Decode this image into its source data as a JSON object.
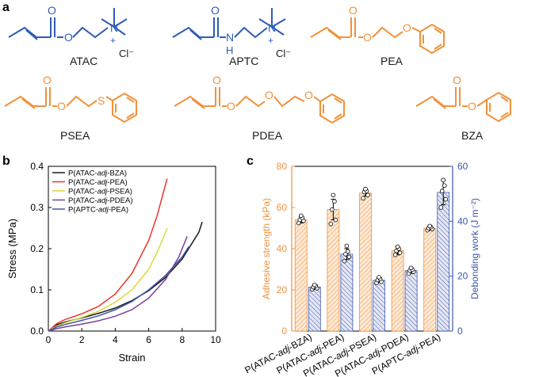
{
  "panel_labels": {
    "a": "a",
    "b": "b",
    "c": "c"
  },
  "molecules": {
    "atac": {
      "name": "ATAC",
      "atoms": [
        "O",
        "O",
        "N",
        "+",
        "Cl⁻"
      ]
    },
    "aptc": {
      "name": "APTC",
      "atoms": [
        "O",
        "N",
        "H",
        "N",
        "+",
        "Cl⁻"
      ]
    },
    "pea": {
      "name": "PEA",
      "atoms": [
        "O",
        "O",
        "O"
      ]
    },
    "psea": {
      "name": "PSEA",
      "atoms": [
        "O",
        "O",
        "S"
      ]
    },
    "pdea": {
      "name": "PDEA",
      "atoms": [
        "O",
        "O",
        "O",
        "O"
      ]
    },
    "bza": {
      "name": "BZA",
      "atoms": [
        "O",
        "O"
      ]
    }
  },
  "colors": {
    "blue": "#2f5bb7",
    "orange": "#f2913a",
    "black": "#1a1a1a",
    "red": "#e8342c",
    "yellow": "#d9d93a",
    "purple": "#7b3fa0",
    "navy": "#3e56a8"
  },
  "chart_data": [
    {
      "type": "line",
      "panel": "b",
      "xlabel": "Strain",
      "ylabel": "Stress (MPa)",
      "xlim": [
        0,
        10
      ],
      "ylim": [
        0,
        0.4
      ],
      "xticks": [
        0,
        2,
        4,
        6,
        8,
        10
      ],
      "yticks": [
        0.0,
        0.1,
        0.2,
        0.3,
        0.4
      ],
      "legend": "top-left",
      "series": [
        {
          "name": "P(ATAC-adj-BZA)",
          "label_parts": [
            "P(ATAC-",
            "adj",
            "-BZA)"
          ],
          "color": "#1a1a1a",
          "x": [
            0,
            0.5,
            1,
            2,
            3,
            4,
            5,
            6,
            7,
            8,
            9,
            9.2
          ],
          "y": [
            0,
            0.015,
            0.022,
            0.032,
            0.043,
            0.056,
            0.074,
            0.098,
            0.13,
            0.175,
            0.24,
            0.265
          ]
        },
        {
          "name": "P(ATAC-adj-PEA)",
          "label_parts": [
            "P(ATAC-",
            "adj",
            "-PEA)"
          ],
          "color": "#e8342c",
          "x": [
            0,
            0.5,
            1,
            2,
            3,
            4,
            5,
            6,
            6.5,
            7.1
          ],
          "y": [
            0,
            0.018,
            0.028,
            0.042,
            0.06,
            0.09,
            0.14,
            0.22,
            0.28,
            0.37
          ]
        },
        {
          "name": "P(ATAC-adj-PSEA)",
          "label_parts": [
            "P(ATAC-",
            "adj",
            "-PSEA)"
          ],
          "color": "#d9d93a",
          "x": [
            0,
            0.5,
            1,
            2,
            3,
            4,
            5,
            6,
            6.6,
            7.1
          ],
          "y": [
            0,
            0.012,
            0.02,
            0.033,
            0.048,
            0.07,
            0.1,
            0.15,
            0.2,
            0.25
          ]
        },
        {
          "name": "P(ATAC-adj-PDEA)",
          "label_parts": [
            "P(ATAC-",
            "adj",
            "-PDEA)"
          ],
          "color": "#7b3fa0",
          "x": [
            0,
            0.5,
            1,
            2,
            3,
            4,
            5,
            6,
            7,
            7.8,
            8.3
          ],
          "y": [
            0,
            0.006,
            0.01,
            0.017,
            0.025,
            0.036,
            0.052,
            0.08,
            0.125,
            0.18,
            0.23
          ]
        },
        {
          "name": "P(APTC-adj-PEA)",
          "label_parts": [
            "P(APTC-",
            "adj",
            "-PEA)"
          ],
          "color": "#3e56a8",
          "x": [
            0,
            0.5,
            1,
            2,
            3,
            4,
            5,
            6,
            7,
            8,
            8.4
          ],
          "y": [
            0,
            0.01,
            0.016,
            0.026,
            0.037,
            0.052,
            0.072,
            0.1,
            0.135,
            0.18,
            0.205
          ]
        }
      ]
    },
    {
      "type": "bar",
      "panel": "c",
      "categories": [
        "P(ATAC-adj-BZA)",
        "P(ATAC-adj-PEA)",
        "P(ATAC-adj-PSEA)",
        "P(ATAC-adj-PDEA)",
        "P(APTC-adj-PEA)"
      ],
      "category_parts": [
        [
          "P(ATAC-",
          "adj",
          "-BZA)"
        ],
        [
          "P(ATAC-",
          "adj",
          "-PEA)"
        ],
        [
          "P(ATAC-",
          "adj",
          "-PSEA)"
        ],
        [
          "P(ATAC-",
          "adj",
          "-PDEA)"
        ],
        [
          "P(APTC-",
          "adj",
          "-PEA)"
        ]
      ],
      "ylabel_left": "Adhesive strength (kPa)",
      "ylabel_right": "Debonding work (J m⁻²)",
      "ylim_left": [
        0,
        80
      ],
      "ylim_right": [
        0,
        60
      ],
      "yticks_left": [
        0,
        20,
        40,
        60,
        80
      ],
      "yticks_right": [
        0,
        20,
        40,
        60
      ],
      "series": [
        {
          "name": "Adhesive strength",
          "axis": "left",
          "color": "#f2913a",
          "values": [
            54,
            59,
            67,
            39,
            50
          ],
          "errors": [
            1.5,
            5,
            1.5,
            2,
            1
          ],
          "points": [
            [
              52.5,
              53.5,
              54,
              55,
              56
            ],
            [
              52,
              54,
              59,
              63,
              66
            ],
            [
              64.5,
              66,
              67.5,
              68,
              69
            ],
            [
              37,
              38,
              39,
              40,
              41
            ],
            [
              49,
              49.5,
              50,
              50.5,
              51
            ]
          ]
        },
        {
          "name": "Debonding work",
          "axis": "right",
          "color": "#3e56a8",
          "values": [
            16,
            28,
            18.5,
            22,
            50.5
          ],
          "errors": [
            0.8,
            2,
            0.8,
            1,
            4.5
          ],
          "points": [
            [
              15.2,
              15.6,
              16,
              16.4,
              16.8
            ],
            [
              25.5,
              27,
              28,
              29,
              31
            ],
            [
              17.6,
              18,
              18.6,
              19,
              19.6
            ],
            [
              21,
              21.6,
              22,
              22.4,
              23
            ],
            [
              45,
              48,
              51,
              53,
              55
            ]
          ]
        }
      ]
    }
  ]
}
